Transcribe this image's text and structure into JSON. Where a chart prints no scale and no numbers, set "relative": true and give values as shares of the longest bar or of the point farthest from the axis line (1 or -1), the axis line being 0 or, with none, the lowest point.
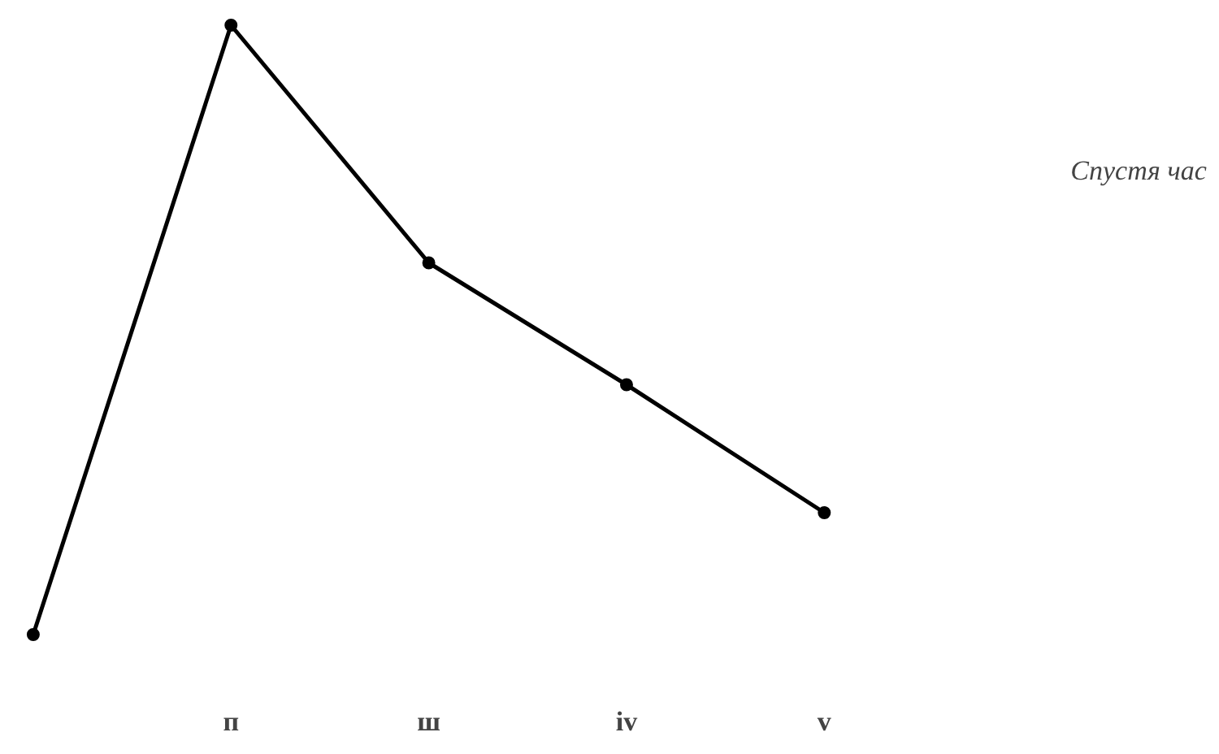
{
  "chart_data": {
    "type": "line",
    "relative": true,
    "categories": [
      null,
      "п",
      "ш",
      "iv",
      "v"
    ],
    "series": [
      {
        "color": "#000000",
        "values": [
          0,
          1,
          0.61,
          0.41,
          0.2
        ]
      }
    ],
    "marker": "circle",
    "line_style": "solid",
    "grid": false,
    "annotations": [
      "Спустя час"
    ]
  }
}
